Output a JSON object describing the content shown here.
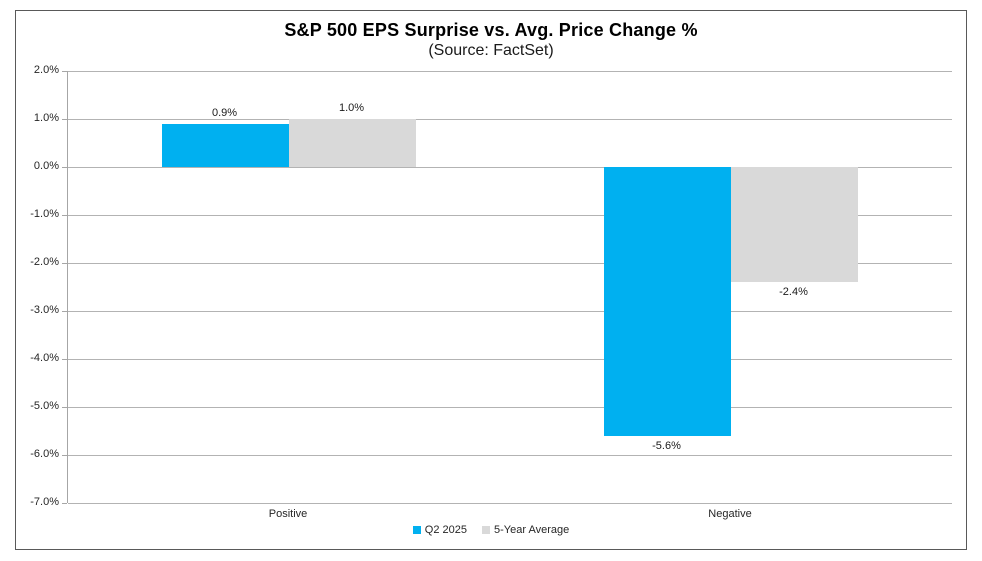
{
  "chart_data": {
    "type": "bar",
    "title": "S&P 500 EPS Surprise vs. Avg. Price Change %",
    "subtitle": "(Source: FactSet)",
    "categories": [
      "Positive",
      "Negative"
    ],
    "series": [
      {
        "name": "Q2 2025",
        "color": "#00B0F0",
        "values": [
          0.9,
          -5.6
        ],
        "labels": [
          "0.9%",
          "-5.6%"
        ]
      },
      {
        "name": "5-Year Average",
        "color": "#D9D9D9",
        "values": [
          1.0,
          -2.4
        ],
        "labels": [
          "1.0%",
          "-2.4%"
        ]
      }
    ],
    "ylabel": "",
    "xlabel": "",
    "ylim": [
      -7.0,
      2.0
    ],
    "ytick_step": 1.0,
    "ytick_labels": [
      "2.0%",
      "1.0%",
      "0.0%",
      "-1.0%",
      "-2.0%",
      "-3.0%",
      "-4.0%",
      "-5.0%",
      "-6.0%",
      "-7.0%"
    ],
    "grid": true,
    "legend_position": "bottom",
    "frame_border_color": "#595959",
    "gridline_color": "#B3B3B3"
  }
}
